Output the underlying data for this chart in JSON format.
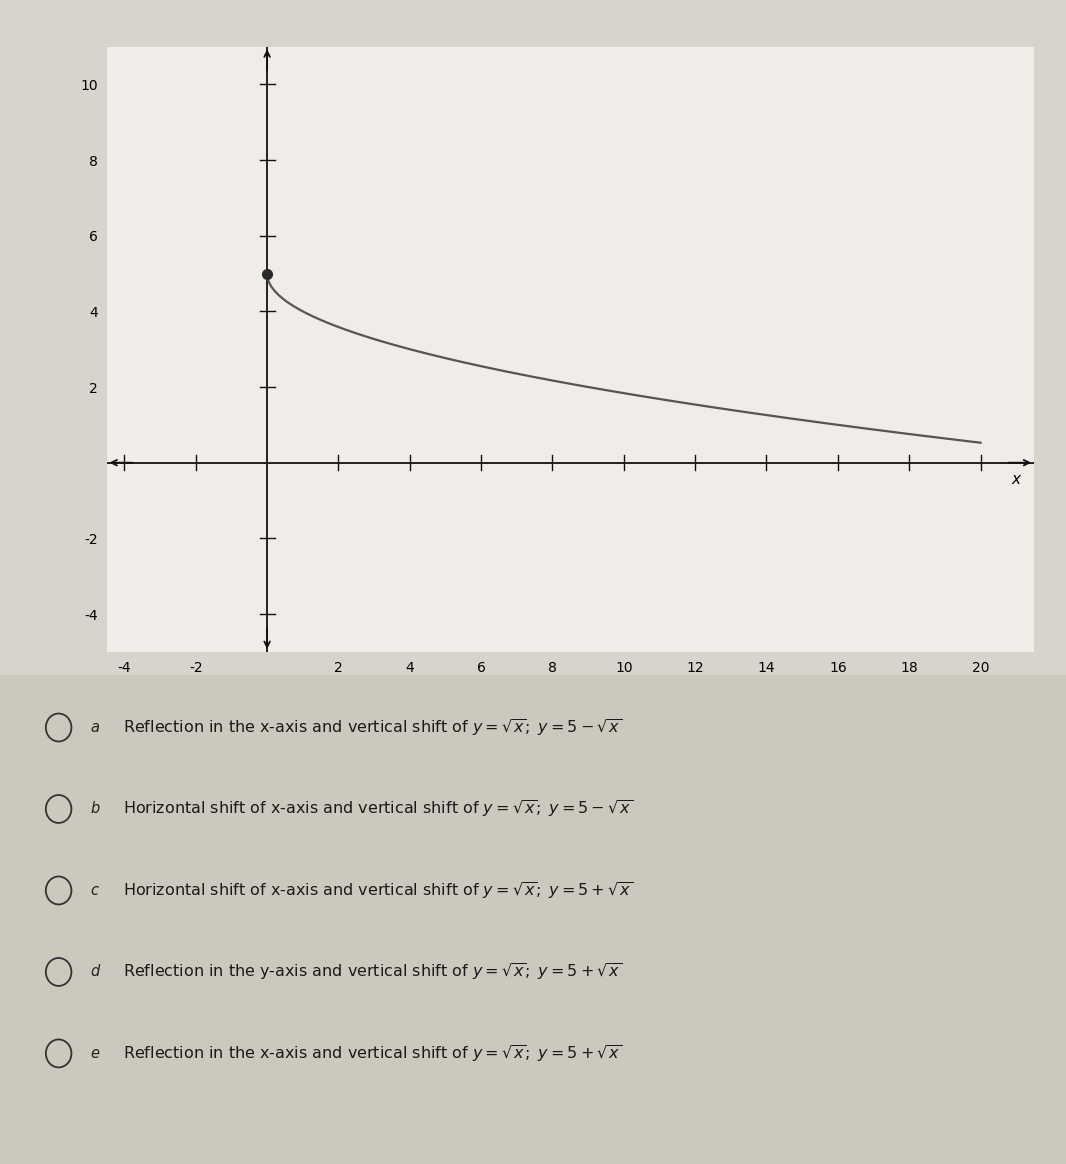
{
  "xlim": [
    -4.5,
    21.5
  ],
  "ylim": [
    -5,
    11
  ],
  "xticks": [
    -4,
    -2,
    2,
    4,
    6,
    8,
    10,
    12,
    14,
    16,
    18,
    20
  ],
  "yticks": [
    -4,
    -2,
    2,
    4,
    6,
    8,
    10
  ],
  "xlabel": "x",
  "curve_color": "#555555",
  "curve_linewidth": 1.6,
  "dot_color": "#2a2a2a",
  "dot_size": 7,
  "dot_x": 0,
  "dot_y": 5,
  "bg_plot": "#f0ede8",
  "bg_options": "#ccc8be",
  "bg_overall": "#d8d4cc",
  "axis_color": "#111111",
  "tick_fontsize": 10,
  "options": [
    {
      "label": "a",
      "text_plain": "Reflection in the x-axis and vertical shift of ",
      "formula": "y = \\sqrt{x};\\; y = 5 - \\sqrt{x}"
    },
    {
      "label": "b",
      "text_plain": "Horizontal shift of x-axis and vertical shift of ",
      "formula": "y = \\sqrt{x};\\; y = 5 - \\sqrt{x}"
    },
    {
      "label": "c",
      "text_plain": "Horizontal shift of x-axis and vertical shift of ",
      "formula": "y = \\sqrt{x};\\; y = 5 + \\sqrt{x}"
    },
    {
      "label": "d",
      "text_plain": "Reflection in the y-axis and vertical shift of ",
      "formula": "y = \\sqrt{x};\\; y = 5 + \\sqrt{x}"
    },
    {
      "label": "e",
      "text_plain": "Reflection in the x-axis and vertical shift of ",
      "formula": "y = \\sqrt{x};\\; y = 5 + \\sqrt{x}"
    }
  ]
}
